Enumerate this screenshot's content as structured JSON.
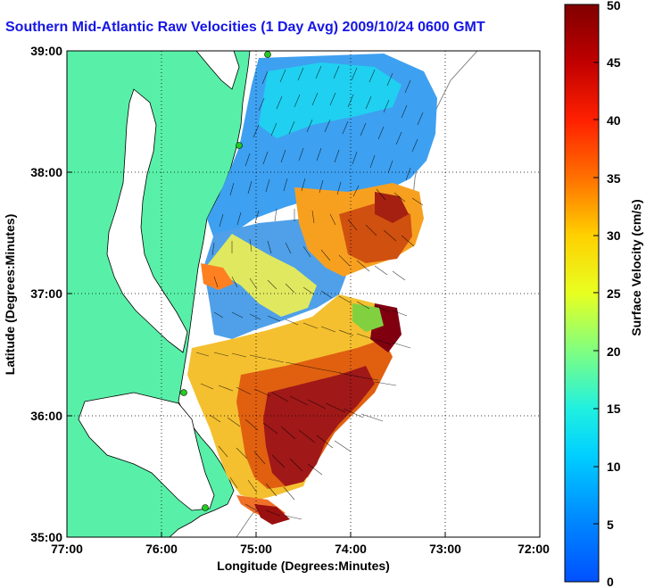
{
  "title": "Southern Mid-Atlantic Raw Velocities (1 Day Avg) 2009/10/24 0600 GMT",
  "map": {
    "x_axis": {
      "label": "Longitude (Degrees:Minutes)",
      "ticks": [
        "77:00",
        "76:00",
        "75:00",
        "74:00",
        "73:00",
        "72:00"
      ]
    },
    "y_axis": {
      "label": "Latitude (Degrees:Minutes)",
      "ticks": [
        "39:00",
        "38:00",
        "37:00",
        "36:00",
        "35:00"
      ]
    },
    "grid": "dotted",
    "colors": {
      "land": "#58f0a8",
      "coastline": "#000000",
      "no_data": "#ffffff",
      "vectors": "#000000",
      "sites": "#22cc22"
    }
  },
  "colorbar": {
    "label": "Surface Velocity (cm/s)",
    "min": 0,
    "max": 50,
    "ticks": [
      "0",
      "5",
      "10",
      "15",
      "20",
      "25",
      "30",
      "35",
      "40",
      "45",
      "50"
    ],
    "colormap": "jet"
  }
}
